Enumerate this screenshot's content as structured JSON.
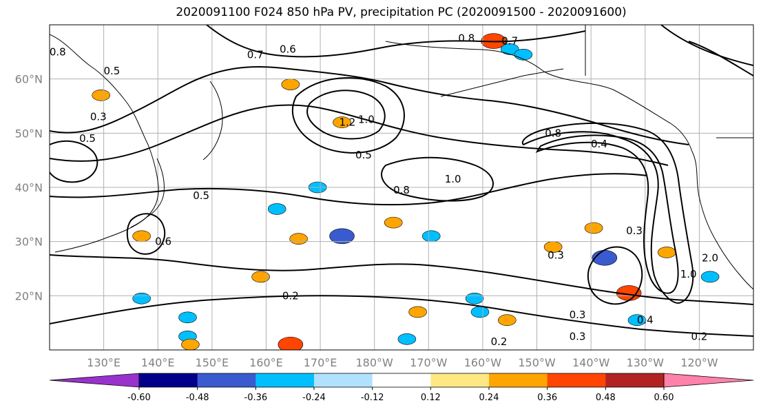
{
  "title": "2020091100 F024 850 hPa PV, precipitation PC (2020091500 - 2020091600)",
  "chart_data": {
    "type": "contour-map",
    "projection": "plate carree",
    "lon_range": [
      120,
      250
    ],
    "lat_range": [
      10,
      70
    ],
    "grid": true,
    "x_ticks": [
      {
        "lon": 130,
        "label": "130°E"
      },
      {
        "lon": 140,
        "label": "140°E"
      },
      {
        "lon": 150,
        "label": "150°E"
      },
      {
        "lon": 160,
        "label": "160°E"
      },
      {
        "lon": 170,
        "label": "170°E"
      },
      {
        "lon": 180,
        "label": "180°W"
      },
      {
        "lon": 190,
        "label": "170°W"
      },
      {
        "lon": 200,
        "label": "160°W"
      },
      {
        "lon": 210,
        "label": "150°W"
      },
      {
        "lon": 220,
        "label": "140°W"
      },
      {
        "lon": 230,
        "label": "130°W"
      },
      {
        "lon": 240,
        "label": "120°W"
      }
    ],
    "y_ticks": [
      {
        "lat": 20,
        "label": "20°N"
      },
      {
        "lat": 30,
        "label": "30°N"
      },
      {
        "lat": 40,
        "label": "40°N"
      },
      {
        "lat": 50,
        "label": "50°N"
      },
      {
        "lat": 60,
        "label": "60°N"
      }
    ],
    "contour_labels": [
      {
        "text": "0.8",
        "lon": 197,
        "lat": 67.5
      },
      {
        "text": "0.7",
        "lon": 205,
        "lat": 67
      },
      {
        "text": "0.7",
        "lon": 158,
        "lat": 64.5
      },
      {
        "text": "0.6",
        "lon": 164,
        "lat": 65.5
      },
      {
        "text": "0.5",
        "lon": 131.5,
        "lat": 61.5
      },
      {
        "text": "0.8",
        "lon": 121.5,
        "lat": 65
      },
      {
        "text": "0.5",
        "lon": 127,
        "lat": 49
      },
      {
        "text": "0.3",
        "lon": 129,
        "lat": 53
      },
      {
        "text": "0.5",
        "lon": 148,
        "lat": 38.5
      },
      {
        "text": "0.6",
        "lon": 141,
        "lat": 30
      },
      {
        "text": "1.2",
        "lon": 175,
        "lat": 52
      },
      {
        "text": "1.0",
        "lon": 178.5,
        "lat": 52.5
      },
      {
        "text": "0.5",
        "lon": 178,
        "lat": 46
      },
      {
        "text": "0.8",
        "lon": 185,
        "lat": 39.5
      },
      {
        "text": "1.0",
        "lon": 194.5,
        "lat": 41.5
      },
      {
        "text": "0.8",
        "lon": 213,
        "lat": 50
      },
      {
        "text": "0.4",
        "lon": 221.5,
        "lat": 48
      },
      {
        "text": "0.3",
        "lon": 228,
        "lat": 32
      },
      {
        "text": "0.3",
        "lon": 213.5,
        "lat": 27.5
      },
      {
        "text": "1.0",
        "lon": 238,
        "lat": 24
      },
      {
        "text": "2.0",
        "lon": 242,
        "lat": 27
      },
      {
        "text": "0.2",
        "lon": 164.5,
        "lat": 20
      },
      {
        "text": "0.2",
        "lon": 203,
        "lat": 11.5
      },
      {
        "text": "0.3",
        "lon": 217.5,
        "lat": 16.5
      },
      {
        "text": "0.3",
        "lon": 217.5,
        "lat": 12.5
      },
      {
        "text": "0.4",
        "lon": 230,
        "lat": 15.5
      },
      {
        "text": "0.2",
        "lon": 240,
        "lat": 12.5
      }
    ],
    "precip_patches": [
      {
        "lon": 202,
        "lat": 67,
        "value": 0.36
      },
      {
        "lon": 205,
        "lat": 65.5,
        "value": -0.3
      },
      {
        "lon": 164.5,
        "lat": 59,
        "value": 0.3
      },
      {
        "lon": 129.5,
        "lat": 57,
        "value": 0.3
      },
      {
        "lon": 166,
        "lat": 30.5,
        "value": 0.3
      },
      {
        "lon": 174,
        "lat": 31,
        "value": -0.42
      },
      {
        "lon": 183.5,
        "lat": 33.5,
        "value": 0.3
      },
      {
        "lon": 190.5,
        "lat": 31,
        "value": -0.3
      },
      {
        "lon": 137,
        "lat": 31,
        "value": 0.3
      },
      {
        "lon": 162,
        "lat": 36,
        "value": -0.3
      },
      {
        "lon": 222.5,
        "lat": 27,
        "value": -0.42
      },
      {
        "lon": 227,
        "lat": 20.5,
        "value": 0.4
      },
      {
        "lon": 213,
        "lat": 29,
        "value": 0.3
      },
      {
        "lon": 220.5,
        "lat": 32.5,
        "value": 0.3
      },
      {
        "lon": 234,
        "lat": 28,
        "value": 0.3
      },
      {
        "lon": 242,
        "lat": 23.5,
        "value": -0.3
      },
      {
        "lon": 199.5,
        "lat": 17,
        "value": -0.3
      },
      {
        "lon": 228.5,
        "lat": 15.5,
        "value": -0.3
      },
      {
        "lon": 145.5,
        "lat": 12.5,
        "value": -0.3
      },
      {
        "lon": 145.5,
        "lat": 16,
        "value": -0.3
      },
      {
        "lon": 164.5,
        "lat": 11,
        "value": 0.4
      },
      {
        "lon": 188,
        "lat": 17,
        "value": 0.3
      },
      {
        "lon": 204.5,
        "lat": 15.5,
        "value": 0.3
      },
      {
        "lon": 198.5,
        "lat": 19.5,
        "value": -0.3
      },
      {
        "lon": 186,
        "lat": 12,
        "value": -0.3
      },
      {
        "lon": 137,
        "lat": 19.5,
        "value": -0.3
      },
      {
        "lon": 159,
        "lat": 23.5,
        "value": 0.3
      },
      {
        "lon": 207.5,
        "lat": 64.5,
        "value": -0.3
      },
      {
        "lon": 174,
        "lat": 52,
        "value": 0.3
      },
      {
        "lon": 169.5,
        "lat": 40,
        "value": -0.3
      },
      {
        "lon": 146,
        "lat": 11,
        "value": 0.3
      }
    ],
    "colorbar": {
      "ticks": [
        "-0.60",
        "-0.48",
        "-0.36",
        "-0.24",
        "-0.12",
        "0.12",
        "0.24",
        "0.36",
        "0.48",
        "0.60"
      ],
      "levels": [
        -0.6,
        -0.48,
        -0.36,
        -0.24,
        -0.12,
        0.12,
        0.24,
        0.36,
        0.48,
        0.6
      ],
      "colors": [
        "#9932cc",
        "#00008b",
        "#3a5bcf",
        "#00bfff",
        "#b0e2ff",
        "#ffffff",
        "#fde884",
        "#ffa500",
        "#ff4500",
        "#b22222",
        "#ff82ab"
      ],
      "extend": "both"
    }
  }
}
